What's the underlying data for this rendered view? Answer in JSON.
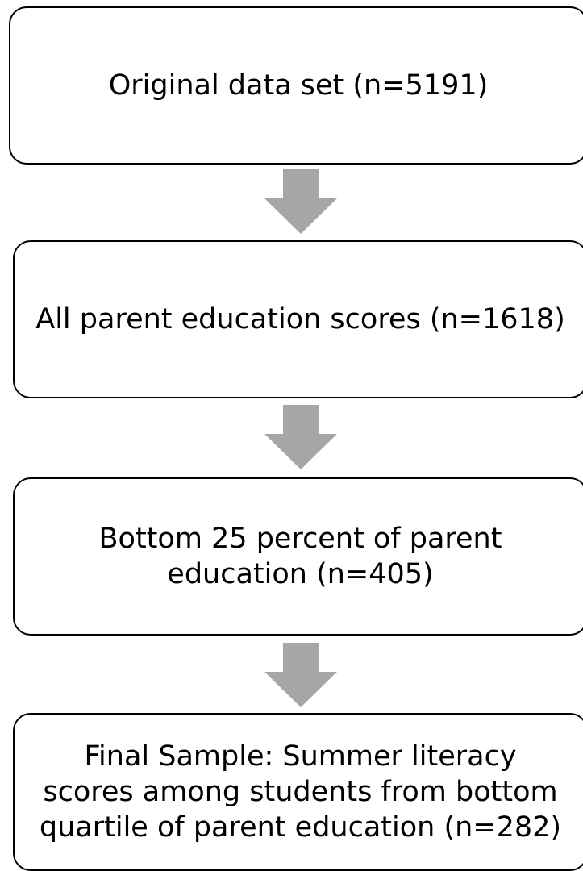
{
  "flowchart": {
    "arrow_color": "#a6a6a6",
    "boxes": [
      {
        "label": "Original data set (n=5191)"
      },
      {
        "label": "All parent education scores (n=1618)"
      },
      {
        "label": "Bottom 25 percent of parent\neducation (n=405)"
      },
      {
        "label": "Final Sample: Summer literacy\nscores among students from bottom\nquartile of parent education (n=282)"
      }
    ]
  }
}
